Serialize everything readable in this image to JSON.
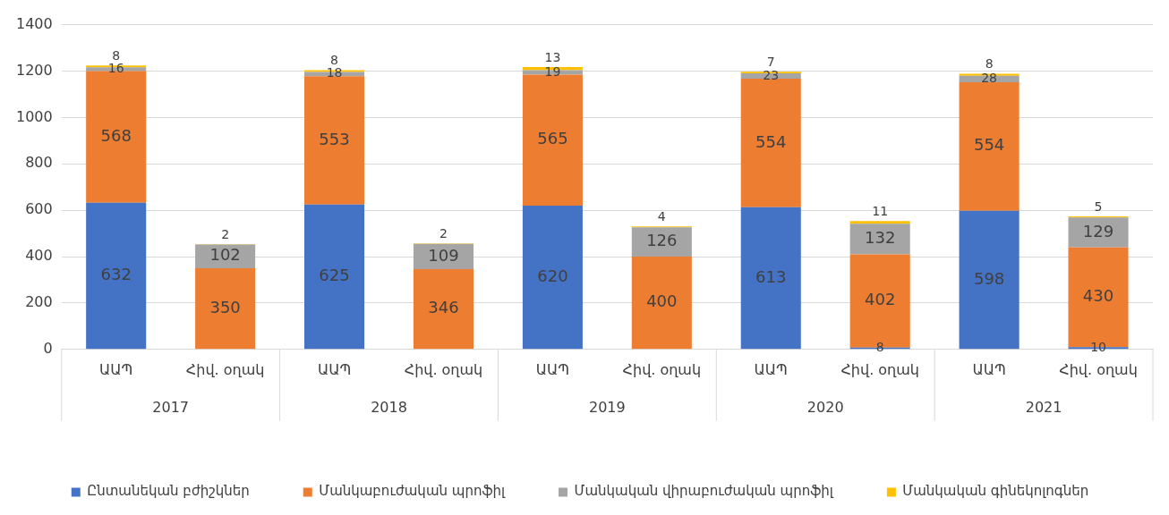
{
  "chart_data": {
    "type": "bar",
    "stacked": true,
    "categories": [
      "ԱԱՊ",
      "Հիվ. օղակ",
      "ԱԱՊ",
      "Հիվ. օղակ",
      "ԱԱՊ",
      "Հիվ. օղակ",
      "ԱԱՊ",
      "Հիվ. օղակ",
      "ԱԱՊ",
      "Հիվ. օղակ"
    ],
    "annotations": [
      "2017",
      "2018",
      "2019",
      "2020",
      "2021"
    ],
    "series": [
      {
        "name": "Ընտանեկան բժիշկներ",
        "color": "#4472c4",
        "values": [
          632,
          null,
          625,
          null,
          620,
          null,
          613,
          8,
          598,
          10
        ],
        "value_labels": [
          "632",
          null,
          "625",
          null,
          "620",
          null,
          "613",
          "8",
          "598",
          "10"
        ]
      },
      {
        "name": "Մանկաբուժական պրոֆիլ",
        "color": "#ed7d31",
        "values": [
          568,
          350,
          553,
          346,
          565,
          400,
          554,
          402,
          554,
          430
        ],
        "value_labels": [
          "568",
          "350",
          "553",
          "346",
          "565",
          "400",
          "554",
          "402",
          "554",
          "430"
        ]
      },
      {
        "name": "Մանկական վիրաբուժական պրոֆիլ",
        "color": "#a5a5a5",
        "values": [
          16,
          102,
          18,
          109,
          19,
          126,
          23,
          132,
          28,
          129
        ],
        "value_labels": [
          "16",
          "102",
          "18",
          "109",
          "19",
          "126",
          "23",
          "132",
          "28",
          "129"
        ]
      },
      {
        "name": "Մանկական գինեկոլոգներ",
        "color": "#ffc000",
        "values": [
          8,
          2,
          8,
          2,
          13,
          4,
          7,
          11,
          8,
          5
        ],
        "value_labels": [
          "8",
          "2",
          "8",
          "2",
          "13",
          "4",
          "7",
          "11",
          "8",
          "5"
        ]
      }
    ],
    "ylim": [
      0,
      1400
    ],
    "yticks": [
      0,
      200,
      400,
      600,
      800,
      1000,
      1200,
      1400
    ],
    "grid": "y",
    "legend": "bottom"
  }
}
